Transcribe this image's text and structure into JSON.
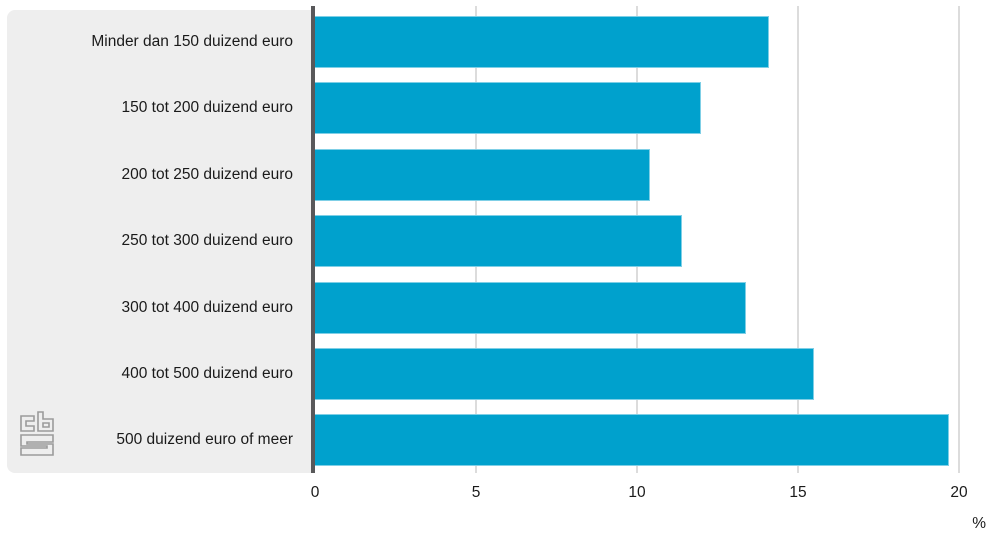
{
  "chart_data": {
    "type": "bar",
    "orientation": "horizontal",
    "title": "",
    "xlabel": "",
    "ylabel": "",
    "unit": "%",
    "categories": [
      "Minder dan 150 duizend euro",
      "150 tot 200 duizend euro",
      "200 tot 250 duizend euro",
      "250 tot 300 duizend euro",
      "300 tot 400 duizend euro",
      "400 tot 500 duizend euro",
      "500 duizend euro of meer"
    ],
    "values": [
      14.1,
      12.0,
      10.4,
      11.4,
      13.4,
      15.5,
      19.7
    ],
    "xlim": [
      0,
      20
    ],
    "x_ticks": [
      0,
      5,
      10,
      15,
      20
    ],
    "grid": true,
    "legend": "none",
    "bar_color": "#00a1cd",
    "bar_edge_color": "#7fcfe6",
    "panel_color": "#eeeeee",
    "axis_line_color": "#58585a",
    "gridline_color": "#dcdcdc"
  },
  "logo": {
    "text": "cbs"
  }
}
